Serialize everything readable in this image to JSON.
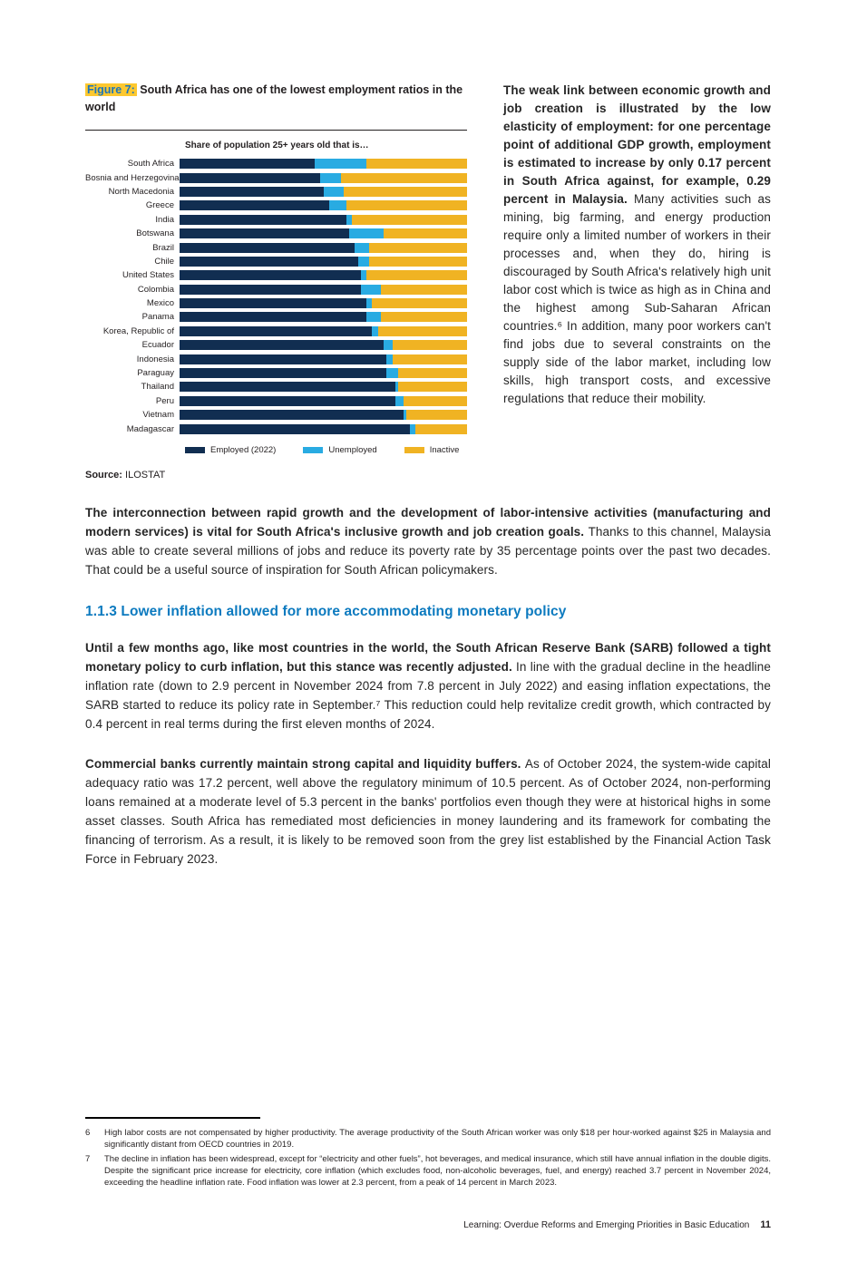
{
  "figure": {
    "label": "Figure 7:",
    "caption": "South Africa has one of the lowest employment ratios in the world",
    "chart_title": "Share of population 25+ years old that is…",
    "source_label": "Source:",
    "source_value": "ILOSTAT"
  },
  "chart_data": {
    "type": "bar",
    "stacked": true,
    "orientation": "horizontal",
    "title": "Share of population 25+ years old that is…",
    "xlabel": "",
    "ylabel": "",
    "xlim": [
      0,
      100
    ],
    "unit": "percent of population aged 25+",
    "legend_position": "bottom",
    "grid": false,
    "categories": [
      "South Africa",
      "Bosnia and Herzegovina",
      "North Macedonia",
      "Greece",
      "India",
      "Botswana",
      "Brazil",
      "Chile",
      "United States",
      "Colombia",
      "Mexico",
      "Panama",
      "Korea, Republic of",
      "Ecuador",
      "Indonesia",
      "Paraguay",
      "Thailand",
      "Peru",
      "Vietnam",
      "Madagascar"
    ],
    "series": [
      {
        "name": "Employed (2022)",
        "color": "#112e51",
        "values": [
          47,
          49,
          50,
          52,
          58,
          59,
          61,
          62,
          63,
          63,
          65,
          65,
          67,
          71,
          72,
          72,
          75,
          75,
          78,
          80
        ]
      },
      {
        "name": "Unemployed",
        "color": "#29abe2",
        "values": [
          18,
          7,
          7,
          6,
          2,
          12,
          5,
          4,
          2,
          7,
          2,
          5,
          2,
          3,
          2,
          4,
          1,
          3,
          1,
          2
        ]
      },
      {
        "name": "Inactive",
        "color": "#f0b323",
        "values": [
          35,
          44,
          43,
          42,
          40,
          29,
          34,
          34,
          35,
          30,
          33,
          30,
          31,
          26,
          26,
          24,
          24,
          22,
          21,
          18
        ]
      }
    ]
  },
  "paragraphs": {
    "weak_link": {
      "bold": "The weak link between economic growth and job creation is illustrated by the low elasticity of employment: for one percentage point of additional GDP growth, employment is estimated to increase by only 0.17 percent in South Africa against, for example, 0.29 percent in Malaysia. ",
      "rest": "Many activities such as mining, big farming, and energy production require only a limited number of workers in their processes and, when they do, hiring is discouraged by South Africa's relatively high unit labor cost which is twice as high as in China and the highest among Sub-Saharan African countries.⁶ In addition, many poor workers can't find jobs due to several constraints on the supply side of the labor market, including low skills, high transport costs, and excessive regulations that reduce their mobility."
    },
    "interconnection": {
      "bold": "The interconnection between rapid growth and the development of labor-intensive activities (manufacturing and modern services) is vital for South Africa's inclusive growth and job creation goals. ",
      "rest": "Thanks to this channel, Malaysia was able to create several millions of jobs and reduce its poverty rate by 35 percentage points over the past two decades. That could be a useful source of inspiration for South African policymakers."
    },
    "monetary": {
      "bold": "Until a few months ago, like most countries in the world, the South African Reserve Bank (SARB) followed a tight monetary policy to curb inflation, but this stance was recently adjusted. ",
      "rest": "In line with the gradual decline in the headline inflation rate (down to 2.9 percent in November 2024 from 7.8 percent in July 2022) and easing inflation expectations, the SARB started to reduce its policy rate in September.⁷ This reduction could help revitalize credit growth, which contracted by 0.4 percent in real terms during the first eleven months of 2024."
    },
    "banks": {
      "bold": "Commercial banks currently maintain strong capital and liquidity buffers. ",
      "rest": "As of October 2024, the system-wide capital adequacy ratio was 17.2 percent, well above the regulatory minimum of 10.5 percent. As of October 2024, non-performing loans remained at a moderate level of 5.3 percent in the banks' portfolios even though they were at historical highs in some asset classes. South Africa has remediated most deficiencies in money laundering and its framework for combating the financing of terrorism. As a result, it is likely to be removed soon from the grey list established by the Financial Action Task Force in February 2023."
    }
  },
  "section": {
    "heading": "1.1.3 Lower inflation allowed for more accommodating monetary policy"
  },
  "footnotes": {
    "items": [
      {
        "number": "6",
        "text": "High labor costs are not compensated by higher productivity. The average productivity of the South African worker was only $18 per hour-worked against $25 in Malaysia and significantly distant from OECD countries in 2019."
      },
      {
        "number": "7",
        "text": "The decline in inflation has been widespread, except for “electricity and other fuels”, hot beverages, and medical insurance, which still have annual inflation in the double digits. Despite the significant price increase for electricity, core inflation (which excludes food, non-alcoholic beverages, fuel, and energy) reached 3.7 percent in November 2024, exceeding the headline inflation rate. Food inflation was lower at 2.3 percent, from a peak of 14 percent in March 2023."
      }
    ]
  },
  "footer": {
    "title": "Learning: Overdue Reforms and Emerging Priorities in Basic Education",
    "page_number": "11"
  }
}
